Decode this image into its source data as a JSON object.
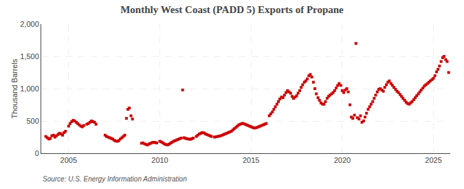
{
  "chart_data": {
    "type": "scatter",
    "title": "Monthly West Coast (PADD 5) Exports of Propane",
    "ylabel": "Thousand Barrels",
    "annotations": [
      "Source: U.S. Energy Information Administration"
    ],
    "color": "#cc0000",
    "marker": "square",
    "grid": true,
    "xlim": [
      2003.5,
      2025.92
    ],
    "xticks": [
      2005,
      2010,
      2015,
      2020,
      2025
    ],
    "ylim": [
      0,
      2000
    ],
    "yticks": [
      0,
      500,
      {
        "value": 1000,
        "label": "1,000"
      },
      {
        "value": 1500,
        "label": "1,500"
      },
      {
        "value": 2000,
        "label": "2,000"
      }
    ],
    "x": [
      2003.75,
      2003.83,
      2003.92,
      2004.0,
      2004.08,
      2004.17,
      2004.25,
      2004.33,
      2004.42,
      2004.5,
      2004.58,
      2004.67,
      2004.75,
      2004.83,
      2005.0,
      2005.08,
      2005.17,
      2005.25,
      2005.33,
      2005.42,
      2005.5,
      2005.58,
      2005.67,
      2005.75,
      2005.83,
      2006.0,
      2006.08,
      2006.17,
      2006.25,
      2006.33,
      2006.42,
      2006.5,
      2007.0,
      2007.08,
      2007.17,
      2007.25,
      2007.33,
      2007.42,
      2007.5,
      2007.58,
      2007.67,
      2007.75,
      2007.83,
      2007.92,
      2008.0,
      2008.08,
      2008.17,
      2008.25,
      2008.33,
      2008.42,
      2008.5,
      2009.0,
      2009.08,
      2009.17,
      2009.25,
      2009.33,
      2009.42,
      2009.5,
      2009.58,
      2009.67,
      2009.75,
      2009.83,
      2010.0,
      2010.08,
      2010.17,
      2010.25,
      2010.33,
      2010.42,
      2010.5,
      2010.58,
      2010.67,
      2010.75,
      2010.83,
      2010.92,
      2011.0,
      2011.08,
      2011.17,
      2011.25,
      2011.33,
      2011.42,
      2011.5,
      2011.58,
      2011.67,
      2011.75,
      2011.83,
      2012.0,
      2012.08,
      2012.17,
      2012.25,
      2012.33,
      2012.42,
      2012.5,
      2012.58,
      2012.67,
      2012.75,
      2012.83,
      2013.0,
      2013.08,
      2013.17,
      2013.25,
      2013.33,
      2013.42,
      2013.5,
      2013.58,
      2013.67,
      2013.75,
      2013.83,
      2013.92,
      2014.0,
      2014.08,
      2014.17,
      2014.25,
      2014.33,
      2014.42,
      2014.5,
      2014.58,
      2014.67,
      2014.75,
      2014.83,
      2014.92,
      2015.0,
      2015.08,
      2015.17,
      2015.25,
      2015.33,
      2015.42,
      2015.5,
      2015.58,
      2015.67,
      2015.75,
      2015.83,
      2016.0,
      2016.08,
      2016.17,
      2016.25,
      2016.33,
      2016.42,
      2016.5,
      2016.58,
      2016.67,
      2016.75,
      2016.83,
      2016.92,
      2017.0,
      2017.08,
      2017.17,
      2017.25,
      2017.33,
      2017.42,
      2017.5,
      2017.58,
      2017.67,
      2017.75,
      2017.83,
      2017.92,
      2018.0,
      2018.08,
      2018.17,
      2018.25,
      2018.33,
      2018.42,
      2018.5,
      2018.58,
      2018.67,
      2018.75,
      2018.83,
      2018.92,
      2019.0,
      2019.08,
      2019.17,
      2019.25,
      2019.33,
      2019.42,
      2019.5,
      2019.58,
      2019.67,
      2019.75,
      2019.83,
      2019.92,
      2020.0,
      2020.08,
      2020.17,
      2020.25,
      2020.33,
      2020.42,
      2020.5,
      2020.58,
      2020.67,
      2020.75,
      2020.83,
      2020.92,
      2021.0,
      2021.08,
      2021.17,
      2021.25,
      2021.33,
      2021.42,
      2021.5,
      2021.58,
      2021.67,
      2021.75,
      2021.83,
      2021.92,
      2022.0,
      2022.08,
      2022.17,
      2022.25,
      2022.33,
      2022.42,
      2022.5,
      2022.58,
      2022.67,
      2022.75,
      2022.83,
      2022.92,
      2023.0,
      2023.08,
      2023.17,
      2023.25,
      2023.33,
      2023.42,
      2023.5,
      2023.58,
      2023.67,
      2023.75,
      2023.83,
      2023.92,
      2024.0,
      2024.08,
      2024.17,
      2024.25,
      2024.33,
      2024.42,
      2024.5,
      2024.58,
      2024.67,
      2024.75,
      2024.83,
      2024.92,
      2025.0,
      2025.08,
      2025.17,
      2025.25,
      2025.33,
      2025.42,
      2025.5,
      2025.58,
      2025.67,
      2025.75,
      2025.83
    ],
    "values": [
      260,
      240,
      220,
      230,
      270,
      280,
      250,
      270,
      290,
      310,
      300,
      280,
      320,
      340,
      420,
      460,
      490,
      510,
      500,
      480,
      460,
      440,
      420,
      410,
      430,
      450,
      460,
      480,
      500,
      490,
      480,
      450,
      280,
      260,
      250,
      240,
      230,
      220,
      200,
      190,
      185,
      195,
      220,
      240,
      260,
      280,
      540,
      680,
      700,
      580,
      530,
      155,
      160,
      145,
      135,
      130,
      145,
      155,
      165,
      170,
      165,
      160,
      185,
      175,
      160,
      145,
      135,
      130,
      140,
      155,
      170,
      185,
      195,
      205,
      215,
      225,
      235,
      980,
      240,
      230,
      225,
      220,
      215,
      225,
      235,
      260,
      280,
      300,
      310,
      320,
      315,
      300,
      290,
      280,
      270,
      260,
      250,
      255,
      260,
      265,
      270,
      280,
      290,
      300,
      310,
      320,
      330,
      340,
      360,
      380,
      400,
      420,
      440,
      450,
      460,
      460,
      450,
      440,
      430,
      420,
      410,
      400,
      390,
      395,
      400,
      410,
      420,
      430,
      440,
      450,
      460,
      580,
      610,
      640,
      680,
      720,
      760,
      800,
      840,
      870,
      860,
      900,
      940,
      970,
      950,
      930,
      880,
      850,
      870,
      890,
      930,
      970,
      1020,
      1060,
      1100,
      1120,
      1150,
      1200,
      1220,
      1180,
      1100,
      1000,
      920,
      860,
      820,
      780,
      760,
      760,
      800,
      850,
      880,
      900,
      920,
      940,
      970,
      1010,
      1050,
      1080,
      1050,
      970,
      940,
      980,
      1000,
      950,
      750,
      560,
      540,
      590,
      1700,
      550,
      530,
      580,
      480,
      500,
      560,
      620,
      680,
      720,
      760,
      800,
      850,
      900,
      950,
      990,
      1000,
      980,
      960,
      1020,
      1060,
      1100,
      1120,
      1080,
      1050,
      1020,
      990,
      960,
      940,
      910,
      880,
      850,
      820,
      790,
      770,
      760,
      780,
      800,
      830,
      860,
      890,
      920,
      950,
      980,
      1010,
      1040,
      1060,
      1080,
      1100,
      1120,
      1140,
      1160,
      1200,
      1260,
      1300,
      1350,
      1420,
      1480,
      1500,
      1450,
      1420,
      1250
    ]
  }
}
